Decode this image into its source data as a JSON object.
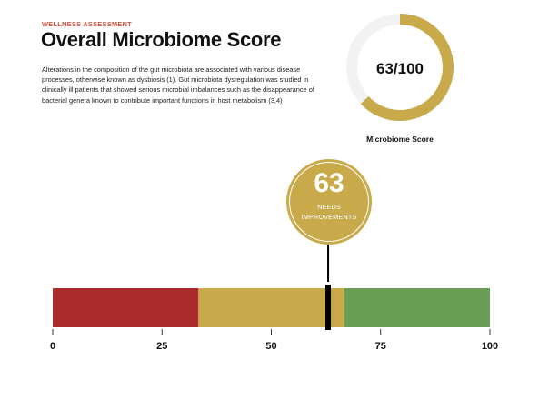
{
  "header": {
    "eyebrow": "WELLNESS ASSESSMENT",
    "title": "Overall Microbiome Score",
    "description": "Alterations in the composition of the gut microbiota are associated with various disease processes, otherwise known as dysbiosis (1). Gut microbiota dysregulation was studied in clinically ill patients that showed serious microbial imbalances such as the disappearance of bacterial genera known to contribute important functions in host metabolism (3,4)"
  },
  "score": {
    "value": 63,
    "max": 100,
    "display": "63/100",
    "label": "Microbiome Score",
    "badge_value": "63",
    "status": "NEEDS IMPROVEMENTS"
  },
  "scale": {
    "min": 0,
    "max": 100,
    "ticks": [
      "0",
      "25",
      "50",
      "75",
      "100"
    ],
    "tick_values": [
      0,
      25,
      50,
      75,
      100
    ],
    "segments": [
      {
        "name": "red",
        "from": 0,
        "to": 33.33,
        "color": "#ab2a2b"
      },
      {
        "name": "yellow",
        "from": 33.33,
        "to": 66.67,
        "color": "#c9aa4b"
      },
      {
        "name": "green",
        "from": 66.67,
        "to": 100,
        "color": "#6a9e55"
      }
    ]
  },
  "colors": {
    "accent": "#c9aa4b",
    "track": "#f2f2f2",
    "eyebrow": "#d2553f"
  }
}
